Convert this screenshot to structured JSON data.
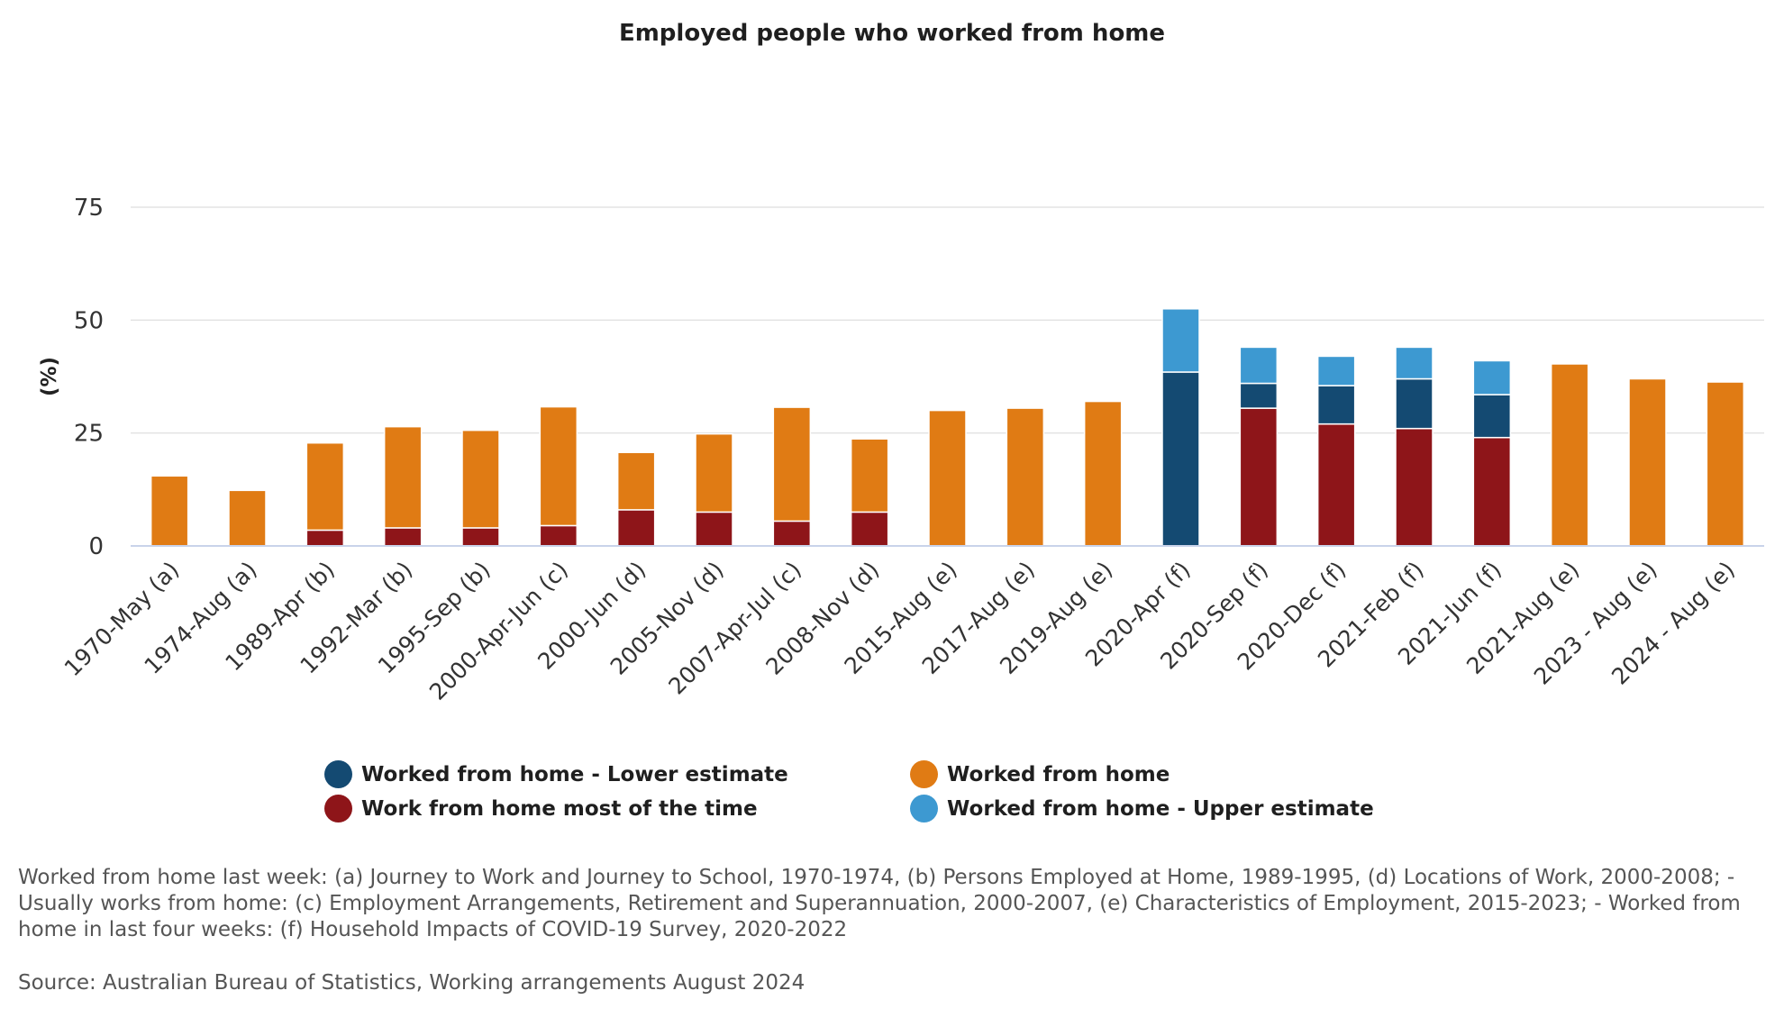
{
  "chart_data": {
    "type": "bar",
    "stacked": true,
    "title": "Employed people who worked from home",
    "ylabel": "(%)",
    "xlabel": "",
    "ylim": [
      0,
      75
    ],
    "yticks": [
      0,
      25,
      50,
      75
    ],
    "grid": true,
    "legend_position": "bottom",
    "categories": [
      "1970-May (a)",
      "1974-Aug (a)",
      "1989-Apr (b)",
      "1992-Mar (b)",
      "1995-Sep (b)",
      "2000-Apr-Jun (c)",
      "2000-Jun (d)",
      "2005-Nov (d)",
      "2007-Apr-Jul (c)",
      "2008-Nov (d)",
      "2015-Aug (e)",
      "2017-Aug (e)",
      "2019-Aug (e)",
      "2020-Apr (f)",
      "2020-Sep (f)",
      "2020-Dec (f)",
      "2021-Feb (f)",
      "2021-Jun (f)",
      "2021-Aug (e)",
      "2023 - Aug (e)",
      "2024 - Aug (e)"
    ],
    "series": [
      {
        "name": "Work from home most of the time",
        "color": "#8e1519",
        "values": [
          0,
          0,
          3.5,
          4,
          4,
          4.5,
          8,
          7.5,
          5.5,
          7.5,
          0,
          0,
          0,
          0,
          30.5,
          27,
          26,
          24,
          0,
          0,
          0
        ]
      },
      {
        "name": "Worked from home - Lower estimate",
        "color": "#144a72",
        "values": [
          0,
          0,
          0,
          0,
          0,
          0,
          0,
          0,
          0,
          0,
          0,
          0,
          0,
          38.5,
          5.5,
          8.5,
          11,
          9.5,
          0,
          0,
          0
        ]
      },
      {
        "name": "Worked from home - Upper estimate",
        "color": "#3d99d1",
        "values": [
          0,
          0,
          0,
          0,
          0,
          0,
          0,
          0,
          0,
          0,
          0,
          0,
          0,
          14,
          8,
          6.5,
          7,
          7.5,
          0,
          0,
          0
        ]
      },
      {
        "name": "Worked from home",
        "color": "#e07b14",
        "values": [
          15.5,
          12.3,
          19.3,
          22.4,
          21.6,
          26.3,
          12.7,
          17.3,
          25.2,
          16.2,
          30,
          30.5,
          32,
          0,
          0,
          0,
          0,
          0,
          40.3,
          37,
          36.3
        ]
      }
    ]
  },
  "legend": {
    "items": [
      {
        "label": "Worked from home - Lower estimate",
        "color": "#144a72"
      },
      {
        "label": "Worked from home",
        "color": "#e07b14"
      },
      {
        "label": "Work from home most of the time",
        "color": "#8e1519"
      },
      {
        "label": "Worked from home - Upper estimate",
        "color": "#3d99d1"
      }
    ]
  },
  "notes": {
    "text": "Worked from home last week: (a) Journey to Work and Journey to School, 1970-1974, (b) Persons Employed at Home, 1989-1995, (d) Locations of Work, 2000-2008; - Usually works from home: (c) Employment Arrangements, Retirement and Superannuation, 2000-2007, (e) Characteristics of Employment, 2015-2023; - Worked from home in last four weeks: (f) Household Impacts of COVID-19 Survey, 2020-2022",
    "source": "Source: Australian Bureau of Statistics, Working arrangements August 2024"
  }
}
